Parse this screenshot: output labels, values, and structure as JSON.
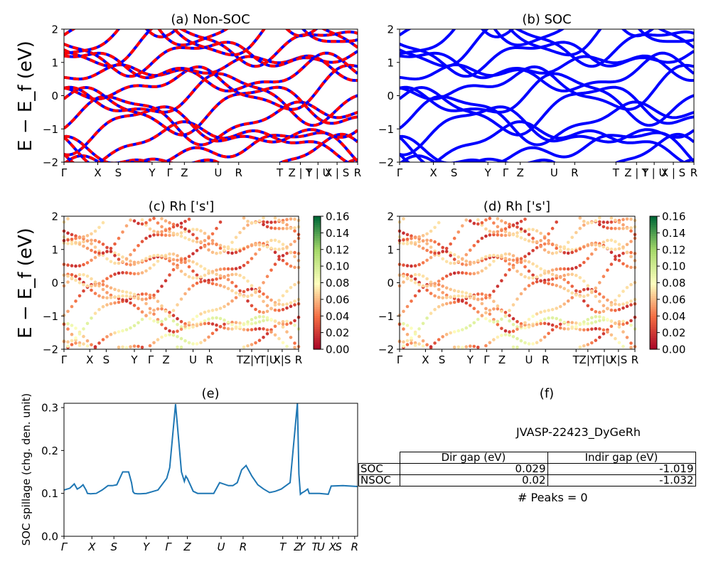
{
  "figure_id": "JVASP-22423_DyGeRh",
  "panels": {
    "a": {
      "title": "(a) Non-SOC"
    },
    "b": {
      "title": "(b) SOC"
    },
    "c": {
      "title": "(c)  Rh ['s']"
    },
    "d": {
      "title": "(d) Rh ['s']"
    },
    "e": {
      "title": "(e)"
    },
    "f": {
      "title": "(f)"
    }
  },
  "band_ylabel": "E − E_f (eV)",
  "kpath_labels": [
    "Γ",
    "X",
    "S",
    "Y",
    "Γ",
    "Z",
    "U",
    "R",
    "T",
    "Z|Y",
    "T|U",
    "X|S",
    "R"
  ],
  "kpath_labels_ab": [
    "Γ",
    "X",
    "S",
    "Y",
    "Γ",
    "Z",
    "U",
    "R",
    "T",
    "Z | Y",
    "T | U",
    "X | S",
    "R"
  ],
  "band_yticks": [
    "2",
    "1",
    "0",
    "−1",
    "−2"
  ],
  "colorbar_ticks": [
    "0.16",
    "0.14",
    "0.12",
    "0.10",
    "0.08",
    "0.06",
    "0.04",
    "0.02",
    "0.00"
  ],
  "spillage": {
    "ylabel": "SOC spillage (chg. den. unit)",
    "yticks": [
      "0.3",
      "0.2",
      "0.1",
      "0.0"
    ],
    "xticks": [
      "Γ",
      "X",
      "S",
      "Y",
      "Γ",
      "Z",
      "U",
      "R",
      "T",
      "Z",
      "Y",
      "T",
      "U",
      "X",
      "S",
      "R"
    ]
  },
  "table": {
    "headers": [
      "Dir gap (eV)",
      "Indir gap (eV)"
    ],
    "rows": [
      {
        "label": "SOC",
        "dir": "0.029",
        "indir": "-1.019"
      },
      {
        "label": "NSOC",
        "dir": "0.02",
        "indir": "-1.032"
      }
    ]
  },
  "peaks_text": "# Peaks = 0",
  "colors": {
    "nonsoc_a": "#ff0000",
    "nonsoc_b": "#0000ff",
    "soc": "#0000ff",
    "spillage": "#1f77b4"
  },
  "chart_data": [
    {
      "type": "line",
      "panel": "e",
      "title": "(e)",
      "ylabel": "SOC spillage (chg. den. unit)",
      "ylim": [
        0.0,
        0.31
      ],
      "x_ticks": [
        "Γ",
        "X",
        "S",
        "Y",
        "Γ",
        "Z",
        "U",
        "R",
        "T",
        "Z",
        "Y",
        "T",
        "U",
        "X",
        "S",
        "R"
      ],
      "series": [
        {
          "x": [
            0.0,
            0.02,
            0.035,
            0.045,
            0.055,
            0.065,
            0.075,
            0.08,
            0.09,
            0.11,
            0.13,
            0.15,
            0.165,
            0.18,
            0.2,
            0.22,
            0.23,
            0.235,
            0.24,
            0.25,
            0.26,
            0.28,
            0.3,
            0.32,
            0.35,
            0.36,
            0.38,
            0.4,
            0.41,
            0.415,
            0.42,
            0.43,
            0.44,
            0.455,
            0.47,
            0.49,
            0.51,
            0.53,
            0.56,
            0.575,
            0.59,
            0.605,
            0.62,
            0.64,
            0.66,
            0.68,
            0.7,
            0.72,
            0.74,
            0.77,
            0.795,
            0.8,
            0.805,
            0.81,
            0.82,
            0.83,
            0.835,
            0.84,
            0.87,
            0.9,
            0.91,
            0.95,
            1.0
          ],
          "y": [
            0.108,
            0.112,
            0.122,
            0.11,
            0.114,
            0.12,
            0.108,
            0.1,
            0.099,
            0.1,
            0.108,
            0.118,
            0.118,
            0.12,
            0.15,
            0.15,
            0.125,
            0.104,
            0.1,
            0.099,
            0.099,
            0.1,
            0.104,
            0.108,
            0.135,
            0.16,
            0.308,
            0.15,
            0.128,
            0.14,
            0.135,
            0.12,
            0.105,
            0.1,
            0.1,
            0.1,
            0.1,
            0.125,
            0.118,
            0.118,
            0.125,
            0.155,
            0.165,
            0.14,
            0.12,
            0.11,
            0.102,
            0.105,
            0.11,
            0.125,
            0.31,
            0.145,
            0.098,
            0.101,
            0.105,
            0.11,
            0.1,
            0.1,
            0.1,
            0.098,
            0.117,
            0.118,
            0.116
          ]
        }
      ]
    }
  ]
}
